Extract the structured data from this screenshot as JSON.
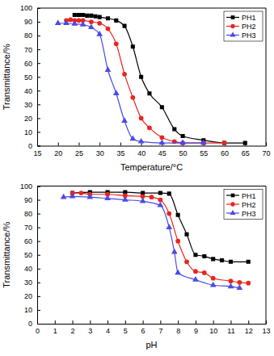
{
  "chart_data": [
    {
      "type": "line",
      "x_label": "Temperature/°C",
      "y_label": "Transmittance/%",
      "xlim": [
        15,
        70
      ],
      "xticks": [
        15,
        20,
        25,
        30,
        35,
        40,
        45,
        50,
        55,
        60,
        65,
        70
      ],
      "ylim": [
        0,
        100
      ],
      "yticks": [
        0,
        10,
        20,
        30,
        40,
        50,
        60,
        70,
        80,
        90,
        100
      ],
      "legend": "upper right",
      "series": [
        {
          "name": "PH1",
          "color": "#000000",
          "marker": "square",
          "line_style": "solid",
          "x": [
            24,
            25,
            26,
            27,
            28,
            29,
            30,
            32,
            34,
            36,
            38,
            40,
            42,
            45,
            48,
            50,
            55,
            60,
            65
          ],
          "values": [
            95,
            95,
            95,
            94.5,
            94.5,
            94,
            93.5,
            92.5,
            91,
            87,
            72,
            50,
            38,
            28,
            12,
            7,
            4,
            2,
            2
          ]
        },
        {
          "name": "PH2",
          "color": "#e8251f",
          "marker": "circle",
          "line_style": "solid",
          "x": [
            22,
            23,
            24,
            25,
            26,
            28,
            30,
            32,
            34,
            36,
            38,
            40,
            42,
            45,
            48,
            50,
            55,
            60
          ],
          "values": [
            91,
            91.5,
            91,
            91,
            91,
            90,
            89,
            85,
            74,
            52,
            35,
            20,
            13,
            6,
            3,
            2,
            2,
            2
          ]
        },
        {
          "name": "PH3",
          "color": "#4a4ae6",
          "marker": "triangle",
          "line_style": "solid",
          "x": [
            20,
            22,
            24,
            26,
            28,
            30,
            32,
            34,
            36,
            38,
            40,
            45,
            50,
            55
          ],
          "values": [
            89,
            89,
            88.5,
            88,
            86,
            81,
            55,
            38,
            18,
            5,
            3,
            2,
            2,
            2
          ]
        }
      ]
    },
    {
      "type": "line",
      "x_label": "pH",
      "y_label": "Transmittance/%",
      "xlim": [
        0,
        13
      ],
      "xticks": [
        0,
        1,
        2,
        3,
        4,
        5,
        6,
        7,
        8,
        9,
        10,
        11,
        12,
        13
      ],
      "ylim": [
        0,
        100
      ],
      "yticks": [
        0,
        10,
        20,
        30,
        40,
        50,
        60,
        70,
        80,
        90,
        100
      ],
      "legend": "upper right",
      "series": [
        {
          "name": "PH1",
          "color": "#000000",
          "marker": "square",
          "line_style": "solid",
          "x": [
            2,
            3,
            4,
            5,
            6,
            7,
            7.5,
            8,
            8.5,
            9,
            9.5,
            10,
            10.5,
            11,
            12
          ],
          "values": [
            95,
            95.5,
            95.5,
            95.5,
            95,
            95,
            94.5,
            79,
            65,
            50,
            49,
            47,
            46,
            45,
            45
          ]
        },
        {
          "name": "PH2",
          "color": "#e8251f",
          "marker": "circle",
          "line_style": "solid",
          "x": [
            2,
            2.5,
            3,
            4,
            5,
            6,
            6.5,
            7,
            7.5,
            8,
            8.5,
            9,
            9.5,
            10,
            11,
            11.5,
            12
          ],
          "values": [
            95,
            95,
            94,
            94,
            93,
            92.5,
            92,
            90,
            80,
            60,
            45,
            38,
            37,
            33,
            31,
            30,
            29.5
          ]
        },
        {
          "name": "PH3",
          "color": "#4a4ae6",
          "marker": "triangle",
          "line_style": "solid",
          "x": [
            1.5,
            2,
            3,
            4,
            5,
            6,
            7,
            7.5,
            7.8,
            8,
            9,
            10,
            11,
            11.5
          ],
          "values": [
            92,
            92.5,
            92,
            91,
            90,
            89,
            86,
            70,
            52,
            37,
            32,
            28,
            27,
            26
          ]
        }
      ]
    }
  ]
}
